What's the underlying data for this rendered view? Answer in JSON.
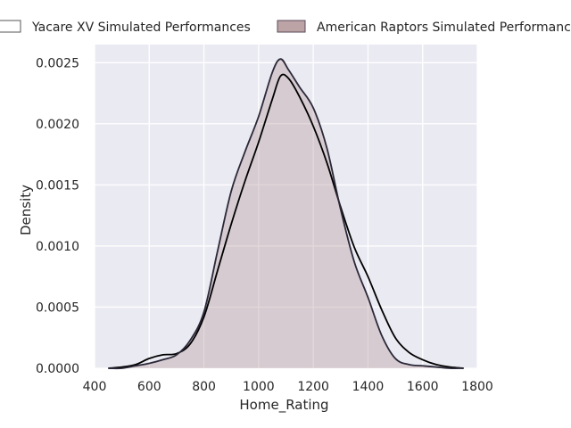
{
  "chart_data": {
    "type": "area",
    "subtype": "kde-density",
    "title": "",
    "xlabel": "Home_Rating",
    "ylabel": "Density",
    "xlim": [
      400,
      1800
    ],
    "ylim": [
      0,
      0.0025
    ],
    "x_ticks": [
      400,
      600,
      800,
      1000,
      1200,
      1400,
      1600,
      1800
    ],
    "y_ticks": [
      0.0,
      0.0005,
      0.001,
      0.0015,
      0.002,
      0.0025
    ],
    "y_tick_labels": [
      "0.0000",
      "0.0005",
      "0.0010",
      "0.0015",
      "0.0020",
      "0.0025"
    ],
    "grid": true,
    "background": "#eaeaf2",
    "legend_position": "top",
    "series": [
      {
        "name": "Yacare XV Simulated Performances",
        "fill": "none",
        "line_color": "#000000",
        "points": [
          [
            450,
            0.0
          ],
          [
            500,
            1e-05
          ],
          [
            550,
            3e-05
          ],
          [
            600,
            8e-05
          ],
          [
            650,
            0.00011
          ],
          [
            700,
            0.00012
          ],
          [
            750,
            0.0002
          ],
          [
            800,
            0.00042
          ],
          [
            850,
            0.0008
          ],
          [
            900,
            0.00118
          ],
          [
            950,
            0.00153
          ],
          [
            1000,
            0.00185
          ],
          [
            1050,
            0.0022
          ],
          [
            1080,
            0.00239
          ],
          [
            1110,
            0.00237
          ],
          [
            1150,
            0.00222
          ],
          [
            1200,
            0.00198
          ],
          [
            1250,
            0.00168
          ],
          [
            1300,
            0.00132
          ],
          [
            1350,
            0.00099
          ],
          [
            1400,
            0.00075
          ],
          [
            1450,
            0.00048
          ],
          [
            1500,
            0.00025
          ],
          [
            1550,
            0.00013
          ],
          [
            1600,
            7e-05
          ],
          [
            1650,
            3e-05
          ],
          [
            1700,
            1e-05
          ],
          [
            1750,
            0.0
          ]
        ]
      },
      {
        "name": "American Raptors Simulated Performances",
        "fill": "#b09395",
        "line_color": "#2b2838",
        "points": [
          [
            450,
            0.0
          ],
          [
            500,
            0.0
          ],
          [
            550,
            2e-05
          ],
          [
            600,
            4e-05
          ],
          [
            650,
            7e-05
          ],
          [
            700,
            0.00011
          ],
          [
            750,
            0.00023
          ],
          [
            800,
            0.00046
          ],
          [
            850,
            0.00096
          ],
          [
            900,
            0.00145
          ],
          [
            950,
            0.00177
          ],
          [
            1000,
            0.00206
          ],
          [
            1050,
            0.00242
          ],
          [
            1080,
            0.00253
          ],
          [
            1110,
            0.00244
          ],
          [
            1150,
            0.0023
          ],
          [
            1200,
            0.00213
          ],
          [
            1250,
            0.0018
          ],
          [
            1300,
            0.0013
          ],
          [
            1350,
            0.00087
          ],
          [
            1400,
            0.00058
          ],
          [
            1450,
            0.00027
          ],
          [
            1500,
            8e-05
          ],
          [
            1550,
            3e-05
          ],
          [
            1600,
            2e-05
          ],
          [
            1650,
            1e-05
          ],
          [
            1700,
            0.0
          ],
          [
            1750,
            0.0
          ]
        ]
      }
    ]
  }
}
